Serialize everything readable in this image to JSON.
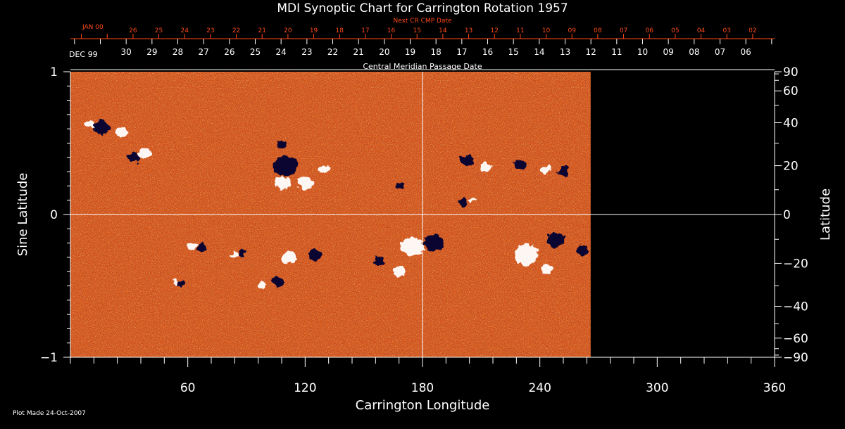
{
  "chart_data": {
    "type": "heatmap",
    "title": "MDI Synoptic Chart for Carrington Rotation 1957",
    "xlabel": "Carrington Longitude",
    "ylabel_left": "Sine Latitude",
    "ylabel_right": "Latitude",
    "xlim": [
      0,
      360
    ],
    "ylim": [
      -1,
      1
    ],
    "x_ticks": [
      60,
      120,
      180,
      240,
      300,
      360
    ],
    "y_left_ticks": [
      {
        "value": 1,
        "label": "1"
      },
      {
        "value": 0,
        "label": "0"
      },
      {
        "value": -1,
        "label": "−1"
      }
    ],
    "y_right_ticks": [
      {
        "deg": 90,
        "label": "90"
      },
      {
        "deg": 60,
        "label": "60"
      },
      {
        "deg": 40,
        "label": "40"
      },
      {
        "deg": 20,
        "label": "20"
      },
      {
        "deg": 0,
        "label": "0"
      },
      {
        "deg": -20,
        "label": "−20"
      },
      {
        "deg": -40,
        "label": "−40"
      },
      {
        "deg": -60,
        "label": "−60"
      },
      {
        "deg": -90,
        "label": "−90"
      }
    ],
    "data_extent_longitude": [
      0,
      266
    ],
    "background_color": "#d4521a",
    "positive_color": "#ffffff",
    "negative_color": "#000033",
    "cmp_axis": {
      "label": "Central Meridian Passage Date",
      "month_label": "DEC 99",
      "days": [
        "30",
        "29",
        "28",
        "27",
        "26",
        "25",
        "24",
        "23",
        "22",
        "21",
        "20",
        "19",
        "18",
        "17",
        "16",
        "15",
        "14",
        "13",
        "12",
        "11",
        "10",
        "09",
        "08",
        "07",
        "06"
      ],
      "first_day_longitude": 28.5,
      "longitude_per_day": 13.2
    },
    "next_cmp_axis": {
      "label": "Next CR CMP Date",
      "month_label": "JAN 00",
      "days": [
        "26",
        "25",
        "24",
        "23",
        "22",
        "21",
        "20",
        "19",
        "18",
        "17",
        "16",
        "15",
        "14",
        "13",
        "12",
        "11",
        "10",
        "09",
        "08",
        "07",
        "06",
        "05",
        "04",
        "03",
        "02"
      ],
      "first_day_longitude": 32,
      "longitude_per_day": 13.2,
      "color": "#ff4a1a"
    },
    "reference_lines": {
      "longitude": 180,
      "sine_latitude": 0
    },
    "active_regions": [
      {
        "lon": 10,
        "sinlat": 0.63,
        "polarity": "positive",
        "size": 2.2
      },
      {
        "lon": 16,
        "sinlat": 0.61,
        "polarity": "negative",
        "size": 3.8
      },
      {
        "lon": 26,
        "sinlat": 0.58,
        "polarity": "positive",
        "size": 2.6
      },
      {
        "lon": 32,
        "sinlat": 0.4,
        "polarity": "negative",
        "size": 3.0
      },
      {
        "lon": 38,
        "sinlat": 0.43,
        "polarity": "positive",
        "size": 2.6
      },
      {
        "lon": 110,
        "sinlat": 0.34,
        "polarity": "negative",
        "size": 5.5
      },
      {
        "lon": 108,
        "sinlat": 0.22,
        "polarity": "positive",
        "size": 3.5
      },
      {
        "lon": 120,
        "sinlat": 0.22,
        "polarity": "positive",
        "size": 3.5
      },
      {
        "lon": 108,
        "sinlat": 0.49,
        "polarity": "negative",
        "size": 2.2
      },
      {
        "lon": 130,
        "sinlat": 0.32,
        "polarity": "positive",
        "size": 2.2
      },
      {
        "lon": 168,
        "sinlat": 0.2,
        "polarity": "negative",
        "size": 1.8
      },
      {
        "lon": 203,
        "sinlat": 0.38,
        "polarity": "negative",
        "size": 3.0
      },
      {
        "lon": 212,
        "sinlat": 0.33,
        "polarity": "positive",
        "size": 2.4
      },
      {
        "lon": 230,
        "sinlat": 0.35,
        "polarity": "negative",
        "size": 2.4
      },
      {
        "lon": 243,
        "sinlat": 0.31,
        "polarity": "positive",
        "size": 2.4
      },
      {
        "lon": 252,
        "sinlat": 0.3,
        "polarity": "negative",
        "size": 2.2
      },
      {
        "lon": 201,
        "sinlat": 0.09,
        "polarity": "negative",
        "size": 2.2
      },
      {
        "lon": 206,
        "sinlat": 0.1,
        "polarity": "positive",
        "size": 1.5
      },
      {
        "lon": 175,
        "sinlat": -0.22,
        "polarity": "positive",
        "size": 5.0
      },
      {
        "lon": 186,
        "sinlat": -0.2,
        "polarity": "negative",
        "size": 4.5
      },
      {
        "lon": 168,
        "sinlat": -0.4,
        "polarity": "positive",
        "size": 3.0
      },
      {
        "lon": 158,
        "sinlat": -0.33,
        "polarity": "negative",
        "size": 2.6
      },
      {
        "lon": 233,
        "sinlat": -0.28,
        "polarity": "positive",
        "size": 5.5
      },
      {
        "lon": 248,
        "sinlat": -0.18,
        "polarity": "negative",
        "size": 4.0
      },
      {
        "lon": 262,
        "sinlat": -0.25,
        "polarity": "negative",
        "size": 2.6
      },
      {
        "lon": 244,
        "sinlat": -0.38,
        "polarity": "positive",
        "size": 2.6
      },
      {
        "lon": 112,
        "sinlat": -0.3,
        "polarity": "positive",
        "size": 3.5
      },
      {
        "lon": 125,
        "sinlat": -0.28,
        "polarity": "negative",
        "size": 3.0
      },
      {
        "lon": 106,
        "sinlat": -0.47,
        "polarity": "negative",
        "size": 2.6
      },
      {
        "lon": 98,
        "sinlat": -0.5,
        "polarity": "positive",
        "size": 2.0
      },
      {
        "lon": 62,
        "sinlat": -0.22,
        "polarity": "positive",
        "size": 2.0
      },
      {
        "lon": 67,
        "sinlat": -0.23,
        "polarity": "negative",
        "size": 2.0
      },
      {
        "lon": 84,
        "sinlat": -0.28,
        "polarity": "positive",
        "size": 1.8
      },
      {
        "lon": 88,
        "sinlat": -0.27,
        "polarity": "negative",
        "size": 1.8
      },
      {
        "lon": 54,
        "sinlat": -0.48,
        "polarity": "positive",
        "size": 1.5
      },
      {
        "lon": 57,
        "sinlat": -0.49,
        "polarity": "negative",
        "size": 1.5
      }
    ]
  },
  "footer": {
    "plot_made": "Plot Made 24-Oct-2007"
  }
}
